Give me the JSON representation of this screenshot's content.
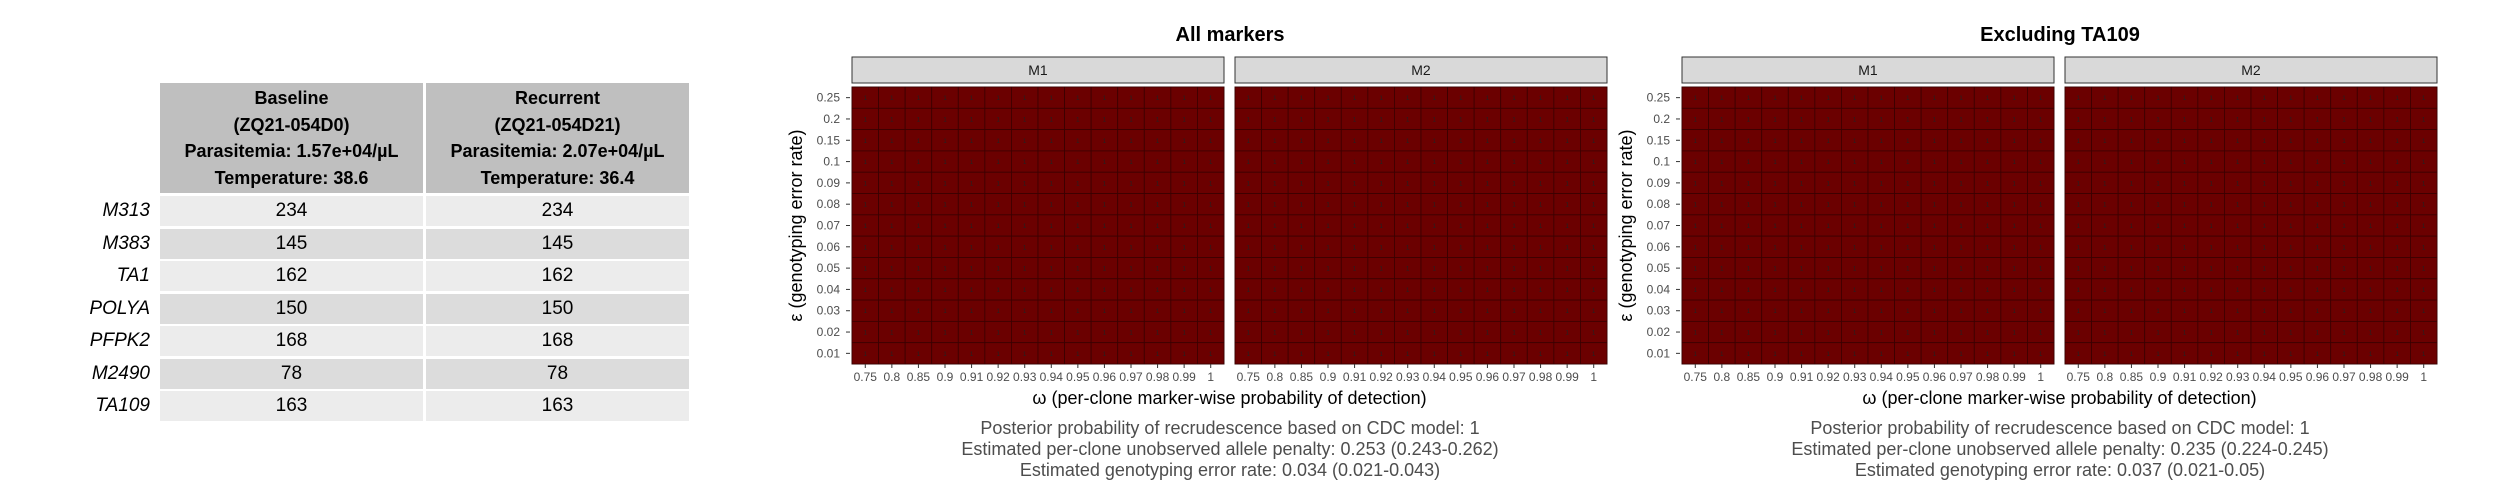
{
  "table": {
    "columns": [
      {
        "lines": [
          "Baseline",
          "(ZQ21-054D0)",
          "Parasitemia: 1.57e+04/µL",
          "Temperature: 38.6"
        ]
      },
      {
        "lines": [
          "Recurrent",
          "(ZQ21-054D21)",
          "Parasitemia: 2.07e+04/µL",
          "Temperature: 36.4"
        ]
      }
    ],
    "rows": [
      {
        "marker": "M313",
        "baseline": "234",
        "recurrent": "234"
      },
      {
        "marker": "M383",
        "baseline": "145",
        "recurrent": "145"
      },
      {
        "marker": "TA1",
        "baseline": "162",
        "recurrent": "162"
      },
      {
        "marker": "POLYA",
        "baseline": "150",
        "recurrent": "150"
      },
      {
        "marker": "PFPK2",
        "baseline": "168",
        "recurrent": "168"
      },
      {
        "marker": "M2490",
        "baseline": "78",
        "recurrent": "78"
      },
      {
        "marker": "TA109",
        "baseline": "163",
        "recurrent": "163"
      }
    ]
  },
  "chart_data": [
    {
      "type": "heatmap",
      "title": "All markers",
      "facets": [
        "M1",
        "M2"
      ],
      "x_ticks": [
        "0.75",
        "0.8",
        "0.85",
        "0.9",
        "0.91",
        "0.92",
        "0.93",
        "0.94",
        "0.95",
        "0.96",
        "0.97",
        "0.98",
        "0.99",
        "1"
      ],
      "y_ticks": [
        "0.25",
        "0.2",
        "0.15",
        "0.1",
        "0.09",
        "0.08",
        "0.07",
        "0.06",
        "0.05",
        "0.04",
        "0.03",
        "0.02",
        "0.01"
      ],
      "xlabel": "ω (per-clone marker-wise probability of detection)",
      "ylabel": "ε (genotyping error rate)",
      "cell_color": "#6b0000",
      "cell_value": "1",
      "captions": [
        "Posterior probability of recrudescence based on CDC model: 1",
        "Estimated per-clone unobserved allele penalty: 0.253 (0.243-0.262)",
        "Estimated genotyping error rate: 0.034 (0.021-0.043)"
      ]
    },
    {
      "type": "heatmap",
      "title": "Excluding TA109",
      "facets": [
        "M1",
        "M2"
      ],
      "x_ticks": [
        "0.75",
        "0.8",
        "0.85",
        "0.9",
        "0.91",
        "0.92",
        "0.93",
        "0.94",
        "0.95",
        "0.96",
        "0.97",
        "0.98",
        "0.99",
        "1"
      ],
      "y_ticks": [
        "0.25",
        "0.2",
        "0.15",
        "0.1",
        "0.09",
        "0.08",
        "0.07",
        "0.06",
        "0.05",
        "0.04",
        "0.03",
        "0.02",
        "0.01"
      ],
      "xlabel": "ω (per-clone marker-wise probability of detection)",
      "ylabel": "ε (genotyping error rate)",
      "cell_color": "#6b0000",
      "cell_value": "1",
      "captions": [
        "Posterior probability of recrudescence based on CDC model: 1",
        "Estimated per-clone unobserved allele penalty: 0.235 (0.224-0.245)",
        "Estimated genotyping error rate: 0.037 (0.021-0.05)"
      ]
    }
  ]
}
